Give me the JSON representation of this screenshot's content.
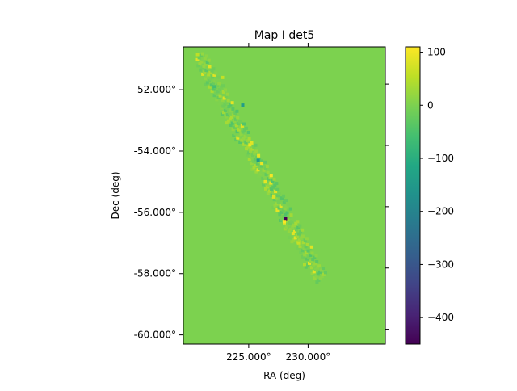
{
  "chart_data": {
    "type": "heatmap",
    "title": "Map I det5",
    "xlabel": "RA (deg)",
    "ylabel": "Dec (deg)",
    "xlim": [
      219.5,
      236.5
    ],
    "ylim": [
      -60.3,
      -50.6
    ],
    "x_ticks": [
      {
        "value": 225.0,
        "label": "225.000°"
      },
      {
        "value": 230.0,
        "label": "230.000°"
      }
    ],
    "y_ticks": [
      {
        "value": -52.0,
        "label": "-52.000°"
      },
      {
        "value": -54.0,
        "label": "-54.000°"
      },
      {
        "value": -56.0,
        "label": "-56.000°"
      },
      {
        "value": -58.0,
        "label": "-58.000°"
      },
      {
        "value": -60.0,
        "label": "-60.000°"
      }
    ],
    "background_value": 0,
    "colorbar": {
      "colormap": "viridis",
      "range": [
        -450,
        110
      ],
      "ticks": [
        100,
        0,
        -100,
        -200,
        -300,
        -400
      ],
      "tick_labels": [
        "100",
        "0",
        "−100",
        "−200",
        "−300",
        "−400"
      ]
    },
    "stripe": {
      "description": "diagonal band of nonzero pixels",
      "start_ra": 220.7,
      "start_dec": -50.9,
      "end_ra": 230.9,
      "end_dec": -58.1
    },
    "notable_pixels": [
      {
        "ra": 220.7,
        "dec": -50.85,
        "value": 55
      },
      {
        "ra": 222.8,
        "dec": -51.6,
        "value": 60
      },
      {
        "ra": 224.5,
        "dec": -52.5,
        "value": -140
      },
      {
        "ra": 222.1,
        "dec": -51.9,
        "value": -60
      },
      {
        "ra": 225.8,
        "dec": -54.3,
        "value": -150
      },
      {
        "ra": 226.1,
        "dec": -54.4,
        "value": 95
      },
      {
        "ra": 226.9,
        "dec": -54.8,
        "value": 105
      },
      {
        "ra": 226.4,
        "dec": -55.0,
        "value": 90
      },
      {
        "ra": 227.1,
        "dec": -55.5,
        "value": 80
      },
      {
        "ra": 228.1,
        "dec": -56.2,
        "value": -450
      },
      {
        "ra": 228.0,
        "dec": -56.3,
        "value": 110
      },
      {
        "ra": 229.2,
        "dec": -57.0,
        "value": 60
      },
      {
        "ra": 229.7,
        "dec": -57.7,
        "value": 40
      }
    ]
  }
}
